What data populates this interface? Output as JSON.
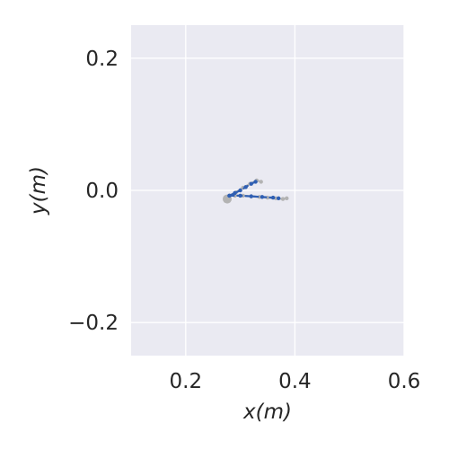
{
  "chart_data": {
    "type": "line",
    "title": "",
    "xlabel": "x(m)",
    "ylabel": "y(m)",
    "xlim": [
      0.1,
      0.6
    ],
    "ylim": [
      -0.25,
      0.25
    ],
    "xticks": [
      0.2,
      0.4,
      0.6
    ],
    "yticks": [
      0.2,
      0.0,
      -0.2
    ],
    "xtick_labels": [
      "0.2",
      "0.4",
      "0.6"
    ],
    "ytick_labels": [
      "0.2",
      "0.0",
      "−0.2"
    ],
    "grid": true,
    "background": "#eaeaf2",
    "series": [
      {
        "color": "#b3b3b3",
        "x": [
          0.276,
          0.28,
          0.29,
          0.305,
          0.32,
          0.335,
          0.35,
          0.365,
          0.378,
          0.385
        ],
        "y": [
          -0.013,
          -0.008,
          -0.008,
          -0.008,
          -0.009,
          -0.01,
          -0.011,
          -0.012,
          -0.013,
          -0.012
        ]
      },
      {
        "color": "#b3b3b3",
        "x": [
          0.28,
          0.292,
          0.305,
          0.318,
          0.33,
          0.338
        ],
        "y": [
          -0.008,
          -0.003,
          0.004,
          0.01,
          0.015,
          0.013
        ]
      },
      {
        "color": "#2f5fb3",
        "x": [
          0.28,
          0.3,
          0.32,
          0.34,
          0.36,
          0.37
        ],
        "y": [
          -0.008,
          -0.008,
          -0.009,
          -0.01,
          -0.011,
          -0.012
        ]
      },
      {
        "color": "#2f5fb3",
        "x": [
          0.28,
          0.29,
          0.3,
          0.31,
          0.32,
          0.328
        ],
        "y": [
          -0.008,
          -0.004,
          0.0,
          0.005,
          0.01,
          0.013
        ]
      }
    ]
  }
}
